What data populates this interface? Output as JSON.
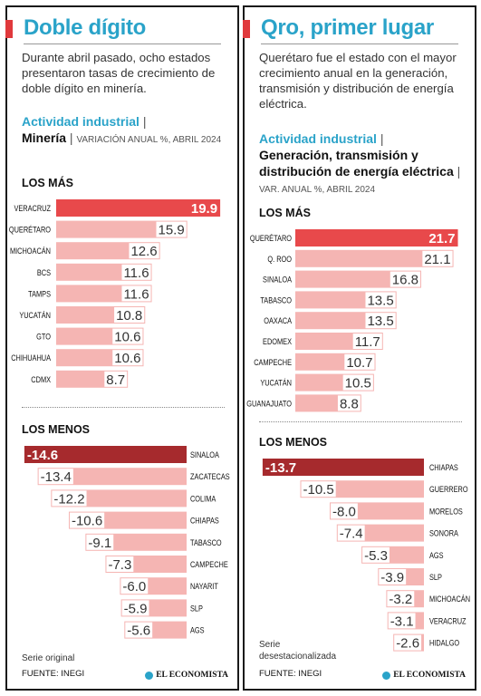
{
  "colors": {
    "accent": "#2aa3c9",
    "highlight_pos": "#e8494b",
    "highlight_neg": "#a62a2d",
    "bar": "#f5b5b3",
    "label_bg": "#ffffff"
  },
  "brand": "EL ECONOMISTA",
  "source": "FUENTE: INEGI",
  "left": {
    "title": "Doble dígito",
    "description": "Durante abril pasado, ocho estados presentaron tasas de crecimiento de doble dígito en minería.",
    "subtitle_label": "Actividad industrial",
    "subtitle_name": "Minería",
    "subtitle_unit": "VARIACIÓN ANUAL %, ABRIL 2024",
    "top_heading": "LOS MÁS",
    "bottom_heading": "LOS MENOS",
    "footnote": "Serie original"
  },
  "right": {
    "title": "Qro, primer lugar",
    "description": "Querétaro fue el estado con el mayor crecimiento anual en la generación, transmisión y distribución de energía eléctrica.",
    "subtitle_label": "Actividad industrial",
    "subtitle_name": "Generación, transmisión y distribución de energía eléctrica",
    "subtitle_unit": "VAR. ANUAL %, ABRIL 2024",
    "top_heading": "LOS MÁS",
    "bottom_heading": "LOS MENOS",
    "footnote": "Serie desestacionalizada"
  },
  "chart_data": [
    {
      "type": "bar",
      "title": "Minería — Los más",
      "categories": [
        "VERACRUZ",
        "QUERÉTARO",
        "MICHOACÁN",
        "BCS",
        "TAMPS",
        "YUCATÁN",
        "GTO",
        "CHIHUAHUA",
        "CDMX"
      ],
      "values": [
        19.9,
        15.9,
        12.6,
        11.6,
        11.6,
        10.8,
        10.6,
        10.6,
        8.7
      ],
      "labels": [
        "19.9",
        "15.9",
        "12.6",
        "11.6",
        "11.6",
        "10.8",
        "10.6",
        "10.6",
        "8.7"
      ]
    },
    {
      "type": "bar",
      "title": "Minería — Los menos",
      "categories": [
        "SINALOA",
        "ZACATECAS",
        "COLIMA",
        "CHIAPAS",
        "TABASCO",
        "CAMPECHE",
        "NAYARIT",
        "SLP",
        "AGS"
      ],
      "values": [
        -14.6,
        -13.4,
        -12.2,
        -10.6,
        -9.1,
        -7.3,
        -6.0,
        -5.9,
        -5.6
      ],
      "labels": [
        "-14.6",
        "-13.4",
        "-12.2",
        "-10.6",
        "-9.1",
        "-7.3",
        "-6.0",
        "-5.9",
        "-5.6"
      ]
    },
    {
      "type": "bar",
      "title": "Energía eléctrica — Los más",
      "categories": [
        "QUERÉTARO",
        "Q. ROO",
        "SINALOA",
        "TABASCO",
        "OAXACA",
        "EDOMEX",
        "CAMPECHE",
        "YUCATÁN",
        "GUANAJUATO"
      ],
      "values": [
        21.7,
        21.1,
        16.8,
        13.5,
        13.5,
        11.7,
        10.7,
        10.5,
        8.8
      ],
      "labels": [
        "21.7",
        "21.1",
        "16.8",
        "13.5",
        "13.5",
        "11.7",
        "10.7",
        "10.5",
        "8.8"
      ]
    },
    {
      "type": "bar",
      "title": "Energía eléctrica — Los menos",
      "categories": [
        "CHIAPAS",
        "GUERRERO",
        "MORELOS",
        "SONORA",
        "AGS",
        "SLP",
        "MICHOACÁN",
        "VERACRUZ",
        "HIDALGO"
      ],
      "values": [
        -13.7,
        -10.5,
        -8.0,
        -7.4,
        -5.3,
        -3.9,
        -3.2,
        -3.1,
        -2.6
      ],
      "labels": [
        "-13.7",
        "-10.5",
        "-8.0",
        "-7.4",
        "-5.3",
        "-3.9",
        "-3.2",
        "-3.1",
        "-2.6"
      ]
    }
  ]
}
